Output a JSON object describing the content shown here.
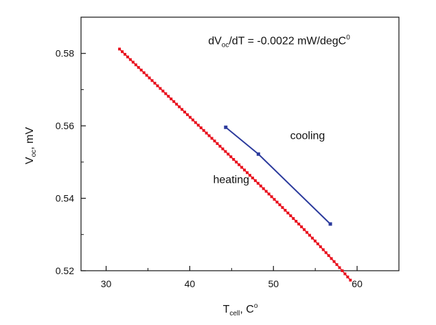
{
  "chart_data": {
    "type": "line",
    "title": "",
    "xlabel": {
      "main": "T",
      "sub": "cell",
      "rest": ", C",
      "sup": "o"
    },
    "ylabel": {
      "main": "V",
      "sub": "oc",
      "rest": ", mV"
    },
    "xlim": [
      27,
      65
    ],
    "ylim": [
      0.52,
      0.59
    ],
    "x_ticks": [
      30,
      40,
      50,
      60
    ],
    "x_tick_labels": [
      "30",
      "40",
      "50",
      "60"
    ],
    "y_ticks": [
      0.52,
      0.54,
      0.56,
      0.58
    ],
    "y_tick_labels": [
      "0.52",
      "0.54",
      "0.56",
      "0.58"
    ],
    "grid": false,
    "series": [
      {
        "name": "heating",
        "color": "#e8101e",
        "x_start": 31.6,
        "x_end": 59.2,
        "y_start": 0.5812,
        "y_end": 0.5196,
        "n_points": 86
      },
      {
        "name": "cooling",
        "color": "#2b3a9c",
        "x": [
          44.3,
          48.2,
          56.8
        ],
        "y": [
          0.5596,
          0.5522,
          0.5329
        ]
      }
    ],
    "annotations": [
      {
        "id": "slope",
        "parts": {
          "a": "dV",
          "sub": "oc",
          "b": "/dT = -0.0022 mW/degC",
          "sup": "0"
        },
        "x": 42.2,
        "y": 0.5825
      },
      {
        "id": "cooling",
        "text": "cooling",
        "x": 52.0,
        "y": 0.5563
      },
      {
        "id": "heating",
        "text": "heating",
        "x": 42.8,
        "y": 0.5442
      }
    ]
  }
}
